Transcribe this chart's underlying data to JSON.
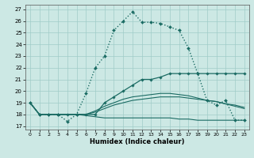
{
  "xlabel": "Humidex (Indice chaleur)",
  "bg_color": "#cce8e4",
  "grid_color": "#a0ccc8",
  "line_color": "#1a6b63",
  "xlim": [
    -0.5,
    23.5
  ],
  "ylim": [
    16.7,
    27.4
  ],
  "xticks": [
    0,
    1,
    2,
    3,
    4,
    5,
    6,
    7,
    8,
    9,
    10,
    11,
    12,
    13,
    14,
    15,
    16,
    17,
    18,
    19,
    20,
    21,
    22,
    23
  ],
  "yticks": [
    17,
    18,
    19,
    20,
    21,
    22,
    23,
    24,
    25,
    26,
    27
  ],
  "curve1_x": [
    0,
    1,
    2,
    3,
    4,
    5,
    6,
    7,
    8,
    9,
    10,
    11,
    12,
    13,
    14,
    15,
    16,
    17,
    18,
    19,
    20,
    21,
    22,
    23
  ],
  "curve1_y": [
    19,
    18,
    18,
    18,
    17.4,
    18,
    19.8,
    22,
    23,
    25.2,
    26,
    26.8,
    25.9,
    25.9,
    25.8,
    25.5,
    25.2,
    23.7,
    21.5,
    19.2,
    18.8,
    19.2,
    17.5,
    17.5
  ],
  "curve2_x": [
    0,
    1,
    2,
    3,
    4,
    5,
    6,
    7,
    8,
    9,
    10,
    11,
    12,
    13,
    14,
    15,
    16,
    17,
    18,
    19,
    20,
    21,
    22,
    23
  ],
  "curve2_y": [
    19,
    18,
    18,
    18,
    18,
    18,
    18,
    18,
    19,
    19.5,
    20,
    20.5,
    21,
    21,
    21.2,
    21.5,
    21.5,
    21.5,
    21.5,
    21.5,
    21.5,
    21.5,
    21.5,
    21.5
  ],
  "line1_y": [
    19,
    18,
    18,
    18,
    18,
    18,
    18,
    18.2,
    18.5,
    18.8,
    19,
    19.2,
    19.3,
    19.4,
    19.5,
    19.5,
    19.5,
    19.4,
    19.3,
    19.2,
    19.1,
    18.9,
    18.8,
    18.6
  ],
  "line2_y": [
    19,
    18,
    18,
    18,
    18,
    18,
    17.9,
    17.8,
    17.7,
    17.7,
    17.7,
    17.7,
    17.7,
    17.7,
    17.7,
    17.7,
    17.6,
    17.6,
    17.5,
    17.5,
    17.5,
    17.5,
    17.5,
    17.5
  ],
  "line3_y": [
    19,
    18,
    18,
    18,
    18,
    18,
    18,
    18.3,
    18.7,
    19.0,
    19.3,
    19.5,
    19.6,
    19.7,
    19.8,
    19.8,
    19.7,
    19.6,
    19.4,
    19.2,
    19.1,
    18.9,
    18.7,
    18.5
  ]
}
